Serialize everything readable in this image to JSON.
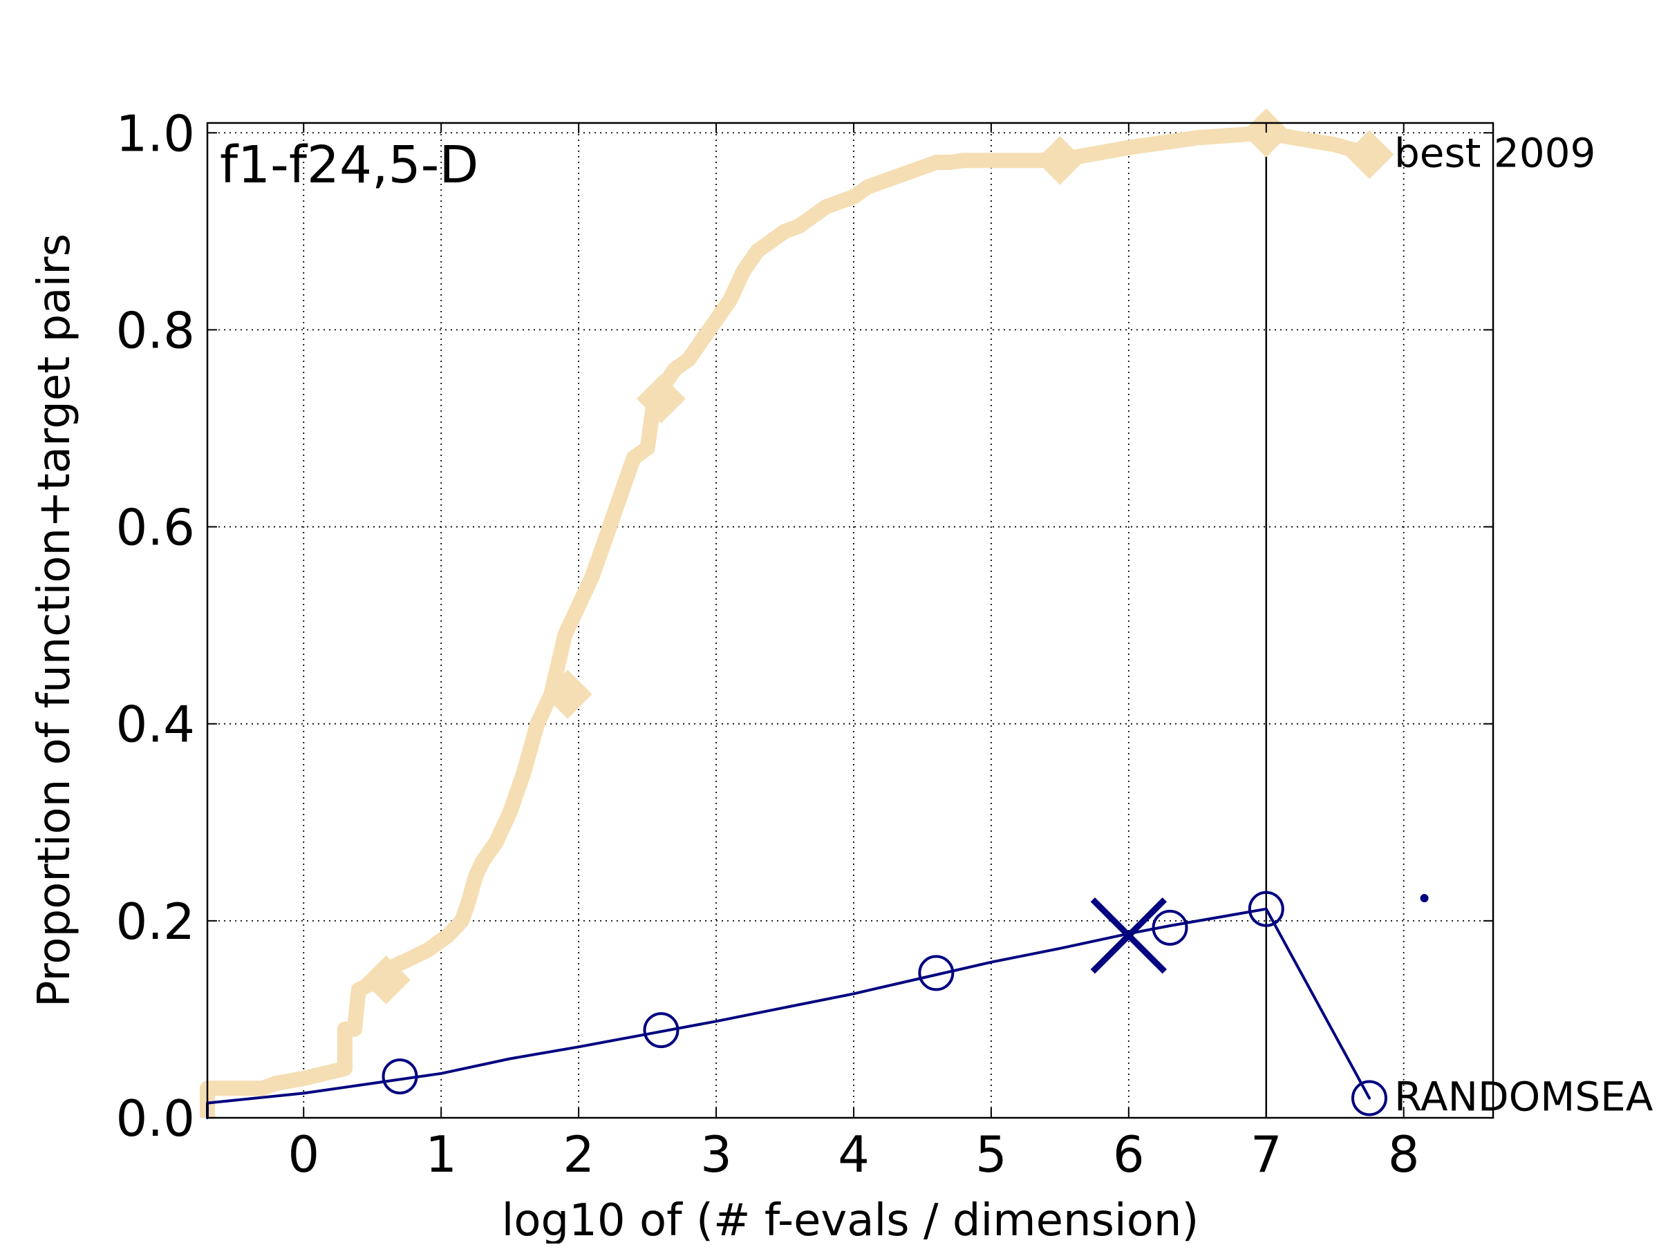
{
  "chart_data": {
    "type": "line",
    "panel_label": "f1-f24,5-D",
    "xlabel": "log10 of (# f-evals / dimension)",
    "ylabel": "Proportion of function+target pairs",
    "xlim": [
      -0.7,
      8.65
    ],
    "ylim": [
      0.0,
      1.01
    ],
    "x_ticks": [
      0,
      1,
      2,
      3,
      4,
      5,
      6,
      7,
      8
    ],
    "x_tick_labels": [
      "0",
      "1",
      "2",
      "3",
      "4",
      "5",
      "6",
      "7",
      "8"
    ],
    "y_ticks": [
      0.0,
      0.2,
      0.4,
      0.6,
      0.8,
      1.0
    ],
    "y_tick_labels": [
      "0.0",
      "0.2",
      "0.4",
      "0.6",
      "0.8",
      "1.0"
    ],
    "grid": true,
    "max_budget_line_x": 7.0,
    "series": [
      {
        "name": "best 2009",
        "color": "#f5deb3",
        "marker": "diamond",
        "x": [
          -0.7,
          -0.7,
          -0.3,
          -0.2,
          0.0,
          0.3,
          0.3,
          0.35,
          0.37,
          0.4,
          0.4,
          0.55,
          0.6,
          0.75,
          0.9,
          1.05,
          1.15,
          1.2,
          1.25,
          1.3,
          1.4,
          1.5,
          1.6,
          1.7,
          1.8,
          1.85,
          1.9,
          2.0,
          2.1,
          2.2,
          2.3,
          2.4,
          2.5,
          2.52,
          2.55,
          2.6,
          2.7,
          2.8,
          2.9,
          3.0,
          3.1,
          3.2,
          3.3,
          3.4,
          3.5,
          3.6,
          3.7,
          3.8,
          3.9,
          4.0,
          4.1,
          4.2,
          4.3,
          4.4,
          4.5,
          4.6,
          4.7,
          4.8,
          4.9,
          5.1,
          5.3,
          5.5,
          5.6,
          5.8,
          6.0,
          6.5,
          7.0,
          7.2,
          7.5,
          7.75
        ],
        "y": [
          0.0,
          0.03,
          0.03,
          0.035,
          0.04,
          0.05,
          0.09,
          0.09,
          0.09,
          0.13,
          0.13,
          0.14,
          0.15,
          0.16,
          0.17,
          0.185,
          0.2,
          0.22,
          0.245,
          0.26,
          0.28,
          0.31,
          0.35,
          0.4,
          0.43,
          0.46,
          0.49,
          0.52,
          0.55,
          0.59,
          0.63,
          0.67,
          0.68,
          0.7,
          0.73,
          0.74,
          0.76,
          0.77,
          0.79,
          0.81,
          0.83,
          0.86,
          0.88,
          0.89,
          0.9,
          0.905,
          0.915,
          0.925,
          0.93,
          0.935,
          0.945,
          0.95,
          0.955,
          0.96,
          0.965,
          0.97,
          0.97,
          0.972,
          0.972,
          0.972,
          0.972,
          0.972,
          0.975,
          0.98,
          0.985,
          0.995,
          1.0,
          0.995,
          0.988,
          0.978
        ],
        "marker_x": [
          0.6,
          1.92,
          2.6,
          5.5,
          7.0,
          7.75
        ],
        "marker_y": [
          0.14,
          0.43,
          0.73,
          0.972,
          1.0,
          0.978
        ]
      },
      {
        "name": "RANDOMSEA",
        "color": "#000080",
        "marker": "circle",
        "x": [
          -0.7,
          -0.7,
          0.0,
          0.5,
          1.0,
          1.5,
          2.0,
          2.5,
          3.0,
          3.5,
          4.0,
          4.5,
          5.0,
          5.5,
          6.0,
          6.3,
          7.0,
          7.75
        ],
        "y": [
          0.0,
          0.015,
          0.025,
          0.035,
          0.045,
          0.06,
          0.072,
          0.085,
          0.098,
          0.112,
          0.126,
          0.142,
          0.158,
          0.172,
          0.187,
          0.195,
          0.212,
          0.02
        ],
        "marker_x": [
          0.7,
          2.6,
          4.6,
          6.3,
          7.0,
          7.75
        ],
        "marker_y": [
          0.042,
          0.089,
          0.147,
          0.193,
          0.212,
          0.02
        ],
        "cross_x": 6.0,
        "cross_y": 0.185,
        "dot_x": 8.15,
        "dot_y": 0.223
      }
    ]
  }
}
